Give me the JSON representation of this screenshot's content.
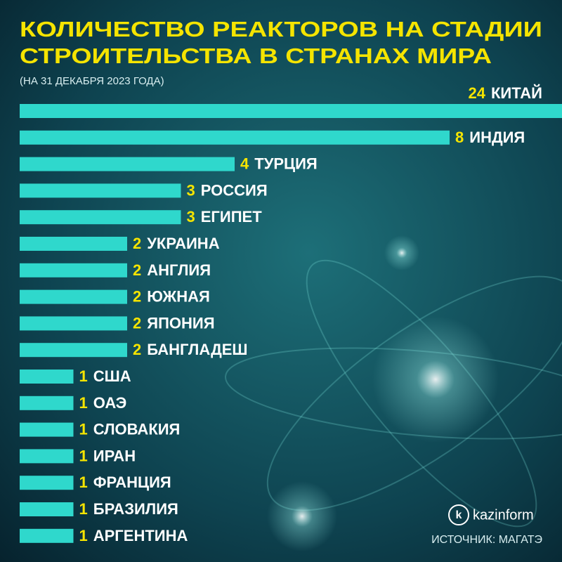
{
  "chart_data": {
    "type": "bar",
    "orientation": "horizontal",
    "title": [
      "КОЛИЧЕСТВО РЕАКТОРОВ НА СТАДИИ",
      "СТРОИТЕЛЬСТВА В СТРАНАХ МИРА"
    ],
    "subtitle": "(НА 31 ДЕКАБРЯ 2023 ГОДА)",
    "categories": [
      "КИТАЙ",
      "ИНДИЯ",
      "ТУРЦИЯ",
      "РОССИЯ",
      "ЕГИПЕТ",
      "УКРАИНА",
      "АНГЛИЯ",
      "ЮЖНАЯ",
      "ЯПОНИЯ",
      "БАНГЛАДЕШ",
      "США",
      "ОАЭ",
      "СЛОВАКИЯ",
      "ИРАН",
      "ФРАНЦИЯ",
      "БРАЗИЛИЯ",
      "АРГЕНТИНА"
    ],
    "values": [
      24,
      8,
      4,
      3,
      3,
      2,
      2,
      2,
      2,
      2,
      1,
      1,
      1,
      1,
      1,
      1,
      1
    ],
    "color": "#2fd8cc",
    "value_color": "#f5e400",
    "logo": "kazinform",
    "source": "ИСТОЧНИК: МАГАТЭ"
  }
}
